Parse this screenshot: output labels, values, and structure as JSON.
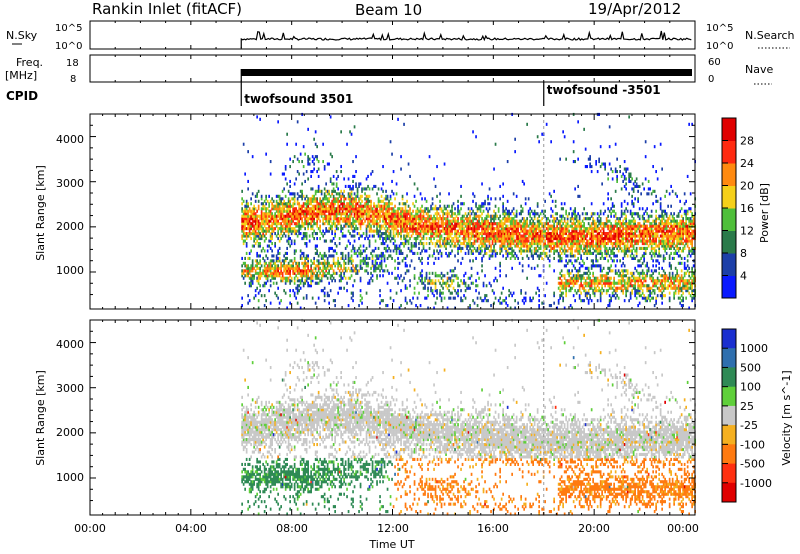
{
  "header": {
    "station": "Rankin Inlet (fitACF)",
    "beam": "Beam 10",
    "date": "19/Apr/2012"
  },
  "status_panels": {
    "nsky_label": "N.Sky",
    "nsky_ticks": [
      "10^5",
      "10^0"
    ],
    "nsearch_label": "N.Search",
    "nsearch_ticks": [
      "10^5",
      "10^0"
    ],
    "freq_label": "Freq.",
    "freq_unit": "[MHz]",
    "freq_ticks": [
      "18",
      "8"
    ],
    "nave_label": "Nave",
    "nave_ticks": [
      "60",
      "0"
    ],
    "cpid_label": "CPID",
    "cpid_segments": [
      {
        "label": "twofsound 3501",
        "start_hour": 6.0
      },
      {
        "label": "twofsound -3501",
        "start_hour": 18.0
      }
    ]
  },
  "chart_data": [
    {
      "type": "heatmap",
      "parameter": "power",
      "ylabel": "Slant Range [km]",
      "ylim": [
        180,
        4500
      ],
      "yticks": [
        "1000",
        "2000",
        "3000",
        "4000"
      ],
      "xlim_hours": [
        0,
        24
      ],
      "xticks": [
        "00:00",
        "04:00",
        "08:00",
        "12:00",
        "16:00",
        "20:00",
        "00:00"
      ],
      "data_start_hour": 6.0,
      "colorbar": {
        "label": "Power [dB]",
        "ticks": [
          "4",
          "8",
          "12",
          "16",
          "20",
          "24",
          "28"
        ],
        "colors": [
          "#0a1aff",
          "#1c3fa8",
          "#2a7a4a",
          "#4fbf3a",
          "#f5d01a",
          "#ff8a10",
          "#ff2a10",
          "#e00000"
        ]
      },
      "bands": [
        {
          "range_km": [
            1600,
            2500
          ],
          "hours": [
            6,
            24
          ],
          "level": "high"
        },
        {
          "range_km": [
            700,
            1300
          ],
          "hours": [
            6,
            9
          ],
          "level": "high"
        },
        {
          "range_km": [
            500,
            1000
          ],
          "hours": [
            18.5,
            24
          ],
          "level": "high"
        }
      ]
    },
    {
      "type": "heatmap",
      "parameter": "velocity",
      "ylabel": "Slant Range [km]",
      "ylim": [
        180,
        4500
      ],
      "yticks": [
        "1000",
        "2000",
        "3000",
        "4000"
      ],
      "xlim_hours": [
        0,
        24
      ],
      "xticks": [
        "00:00",
        "04:00",
        "08:00",
        "12:00",
        "16:00",
        "20:00",
        "00:00"
      ],
      "xlabel": "Time UT",
      "data_start_hour": 6.0,
      "colorbar": {
        "label": "Velocity [m s^-1]",
        "ticks": [
          "1000",
          "500",
          "100",
          "25",
          "-25",
          "-100",
          "-500",
          "-1000"
        ],
        "colors": [
          "#1a2fd0",
          "#2f6fae",
          "#2f8a55",
          "#5fcf3a",
          "#c8c8c8",
          "#f5b020",
          "#ff7a10",
          "#ff3010",
          "#e00000"
        ]
      }
    }
  ]
}
